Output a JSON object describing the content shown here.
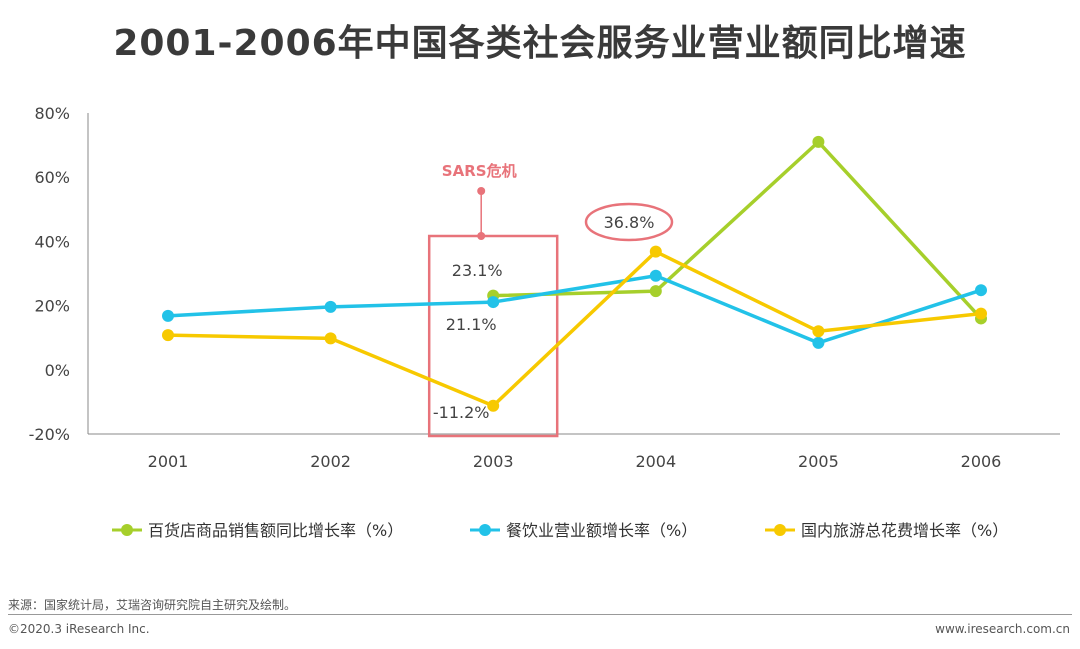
{
  "page": {
    "title": "2001-2006年中国各类社会服务业营业额同比增速",
    "source": "来源：国家统计局，艾瑞咨询研究院自主研究及绘制。",
    "copyright": "©2020.3 iResearch Inc.",
    "url": "www.iresearch.com.cn"
  },
  "chart_data": {
    "type": "line",
    "title": "2001-2006年中国各类社会服务业营业额同比增速",
    "categories": [
      "2001",
      "2002",
      "2003",
      "2004",
      "2005",
      "2006"
    ],
    "ylim": [
      -20,
      80
    ],
    "yticks": [
      "80%",
      "60%",
      "40%",
      "20%",
      "0%",
      "-20%"
    ],
    "ytick_values": [
      80,
      60,
      40,
      20,
      0,
      -20
    ],
    "grid": false,
    "legend_position": "bottom",
    "series": [
      {
        "name": "百货店商品销售额同比增长率（%）",
        "color": "#a6cf2b",
        "values": [
          null,
          null,
          23.1,
          24.5,
          71.0,
          16.0
        ]
      },
      {
        "name": "餐饮业营业额增长率（%）",
        "color": "#22c2e8",
        "values": [
          16.8,
          19.6,
          21.1,
          29.3,
          8.4,
          24.8
        ]
      },
      {
        "name": "国内旅游总花费增长率（%）",
        "color": "#f7c900",
        "values": [
          10.8,
          9.8,
          -11.2,
          36.8,
          12.0,
          17.5
        ]
      }
    ],
    "annotations": {
      "sars_label": "SARS危机",
      "label_2003_dept": "23.1%",
      "label_2003_food": "21.1%",
      "label_2003_travel": "-11.2%",
      "label_2004_travel": "36.8%"
    },
    "colors": {
      "highlight": "#e8737a",
      "axis": "#555555",
      "text": "#444444"
    }
  }
}
